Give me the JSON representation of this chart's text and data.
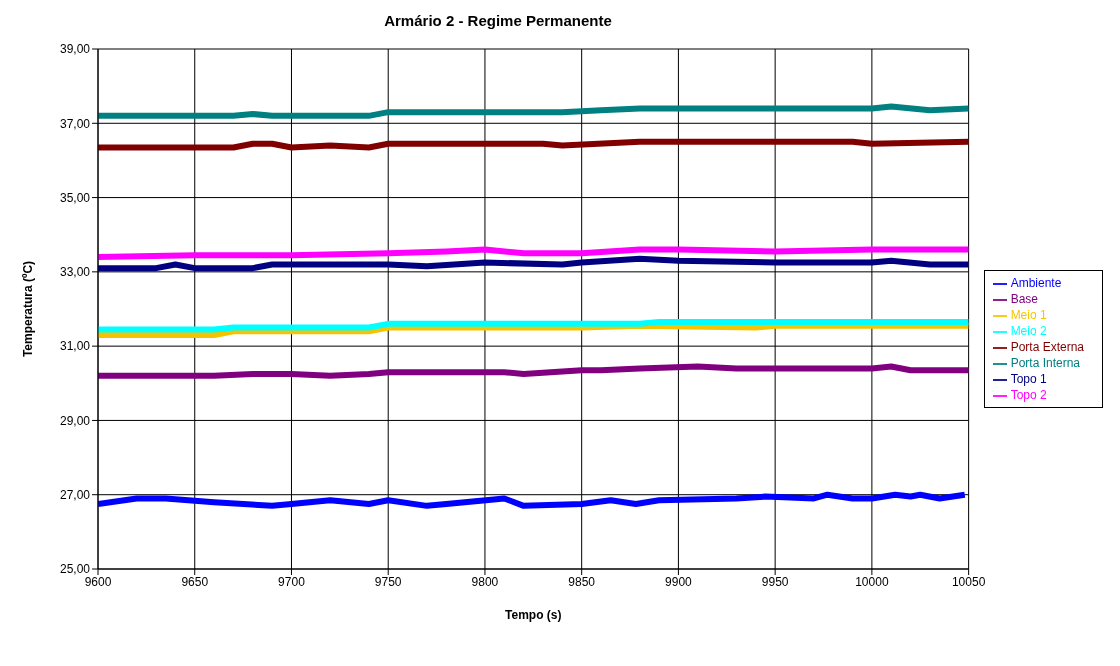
{
  "chart_data": {
    "type": "line",
    "title": "Armário 2 - Regime Permanente",
    "xlabel": "Tempo (s)",
    "ylabel": "Temperatura (ºC)",
    "xlim": [
      9600,
      10050
    ],
    "xticks": [
      9600,
      9650,
      9700,
      9750,
      9800,
      9850,
      9900,
      9950,
      10000,
      10050
    ],
    "ylim": [
      25,
      39
    ],
    "yticks": [
      {
        "value": 25,
        "label": "25,00"
      },
      {
        "value": 27,
        "label": "27,00"
      },
      {
        "value": 29,
        "label": "29,00"
      },
      {
        "value": 31,
        "label": "31,00"
      },
      {
        "value": 33,
        "label": "33,00"
      },
      {
        "value": 35,
        "label": "35,00"
      },
      {
        "value": 37,
        "label": "37,00"
      },
      {
        "value": 39,
        "label": "39,00"
      }
    ],
    "grid": true,
    "legend": "right",
    "marker": "none",
    "line_style": "solid",
    "series": [
      {
        "name": "Topo 1",
        "color": "#000080",
        "x": [
          9600,
          9630,
          9640,
          9650,
          9680,
          9690,
          9720,
          9750,
          9770,
          9800,
          9840,
          9850,
          9880,
          9900,
          9950,
          10000,
          10010,
          10030,
          10050
        ],
        "values": [
          33.1,
          33.1,
          33.2,
          33.1,
          33.1,
          33.2,
          33.2,
          33.2,
          33.15,
          33.25,
          33.2,
          33.25,
          33.35,
          33.3,
          33.25,
          33.25,
          33.3,
          33.2,
          33.2
        ]
      },
      {
        "name": "Topo 2",
        "color": "#ff00ff",
        "x": [
          9600,
          9650,
          9700,
          9750,
          9780,
          9800,
          9820,
          9850,
          9880,
          9900,
          9950,
          10000,
          10050
        ],
        "values": [
          33.4,
          33.45,
          33.45,
          33.5,
          33.55,
          33.6,
          33.5,
          33.5,
          33.6,
          33.6,
          33.55,
          33.6,
          33.6
        ]
      },
      {
        "name": "Meio 1",
        "color": "#f5c400",
        "x": [
          9600,
          9660,
          9670,
          9740,
          9750,
          9850,
          9880,
          9940,
          9950,
          10050
        ],
        "values": [
          31.3,
          31.3,
          31.4,
          31.4,
          31.5,
          31.5,
          31.55,
          31.5,
          31.55,
          31.55
        ]
      },
      {
        "name": "Meio 2",
        "color": "#00ffff",
        "x": [
          9600,
          9660,
          9670,
          9740,
          9750,
          9880,
          9890,
          10050
        ],
        "values": [
          31.45,
          31.45,
          31.5,
          31.5,
          31.6,
          31.6,
          31.65,
          31.65
        ]
      },
      {
        "name": "Base",
        "color": "#800080",
        "x": [
          9600,
          9660,
          9680,
          9700,
          9720,
          9740,
          9750,
          9810,
          9820,
          9850,
          9860,
          9880,
          9910,
          9930,
          9960,
          10000,
          10010,
          10020,
          10050
        ],
        "values": [
          30.2,
          30.2,
          30.25,
          30.25,
          30.2,
          30.25,
          30.3,
          30.3,
          30.25,
          30.35,
          30.35,
          30.4,
          30.45,
          30.4,
          30.4,
          30.4,
          30.45,
          30.35,
          30.35
        ]
      },
      {
        "name": "Porta Externa",
        "color": "#800000",
        "x": [
          9600,
          9670,
          9680,
          9690,
          9700,
          9720,
          9740,
          9750,
          9780,
          9790,
          9800,
          9830,
          9840,
          9880,
          9900,
          9950,
          9990,
          10000,
          10050
        ],
        "values": [
          36.35,
          36.35,
          36.45,
          36.45,
          36.35,
          36.4,
          36.35,
          36.45,
          36.45,
          36.45,
          36.45,
          36.45,
          36.4,
          36.5,
          36.5,
          36.5,
          36.5,
          36.45,
          36.5
        ]
      },
      {
        "name": "Porta Interna",
        "color": "#008080",
        "x": [
          9600,
          9670,
          9680,
          9690,
          9740,
          9750,
          9800,
          9840,
          9860,
          9880,
          9900,
          9950,
          9980,
          10000,
          10010,
          10030,
          10050
        ],
        "values": [
          37.2,
          37.2,
          37.25,
          37.2,
          37.2,
          37.3,
          37.3,
          37.3,
          37.35,
          37.4,
          37.4,
          37.4,
          37.4,
          37.4,
          37.45,
          37.35,
          37.4
        ]
      },
      {
        "name": "Ambiente",
        "color": "#0000ff",
        "x": [
          9600,
          9620,
          9635,
          9660,
          9690,
          9700,
          9720,
          9740,
          9750,
          9770,
          9780,
          9810,
          9820,
          9850,
          9865,
          9878,
          9890,
          9930,
          9945,
          9970,
          9977,
          9990,
          10000,
          10012,
          10020,
          10025,
          10035,
          10048
        ],
        "values": [
          26.75,
          26.9,
          26.9,
          26.8,
          26.7,
          26.75,
          26.85,
          26.75,
          26.85,
          26.7,
          26.75,
          26.9,
          26.7,
          26.75,
          26.85,
          26.75,
          26.85,
          26.9,
          26.95,
          26.9,
          27.0,
          26.9,
          26.9,
          27.0,
          26.95,
          27.0,
          26.9,
          27.0
        ]
      }
    ]
  }
}
